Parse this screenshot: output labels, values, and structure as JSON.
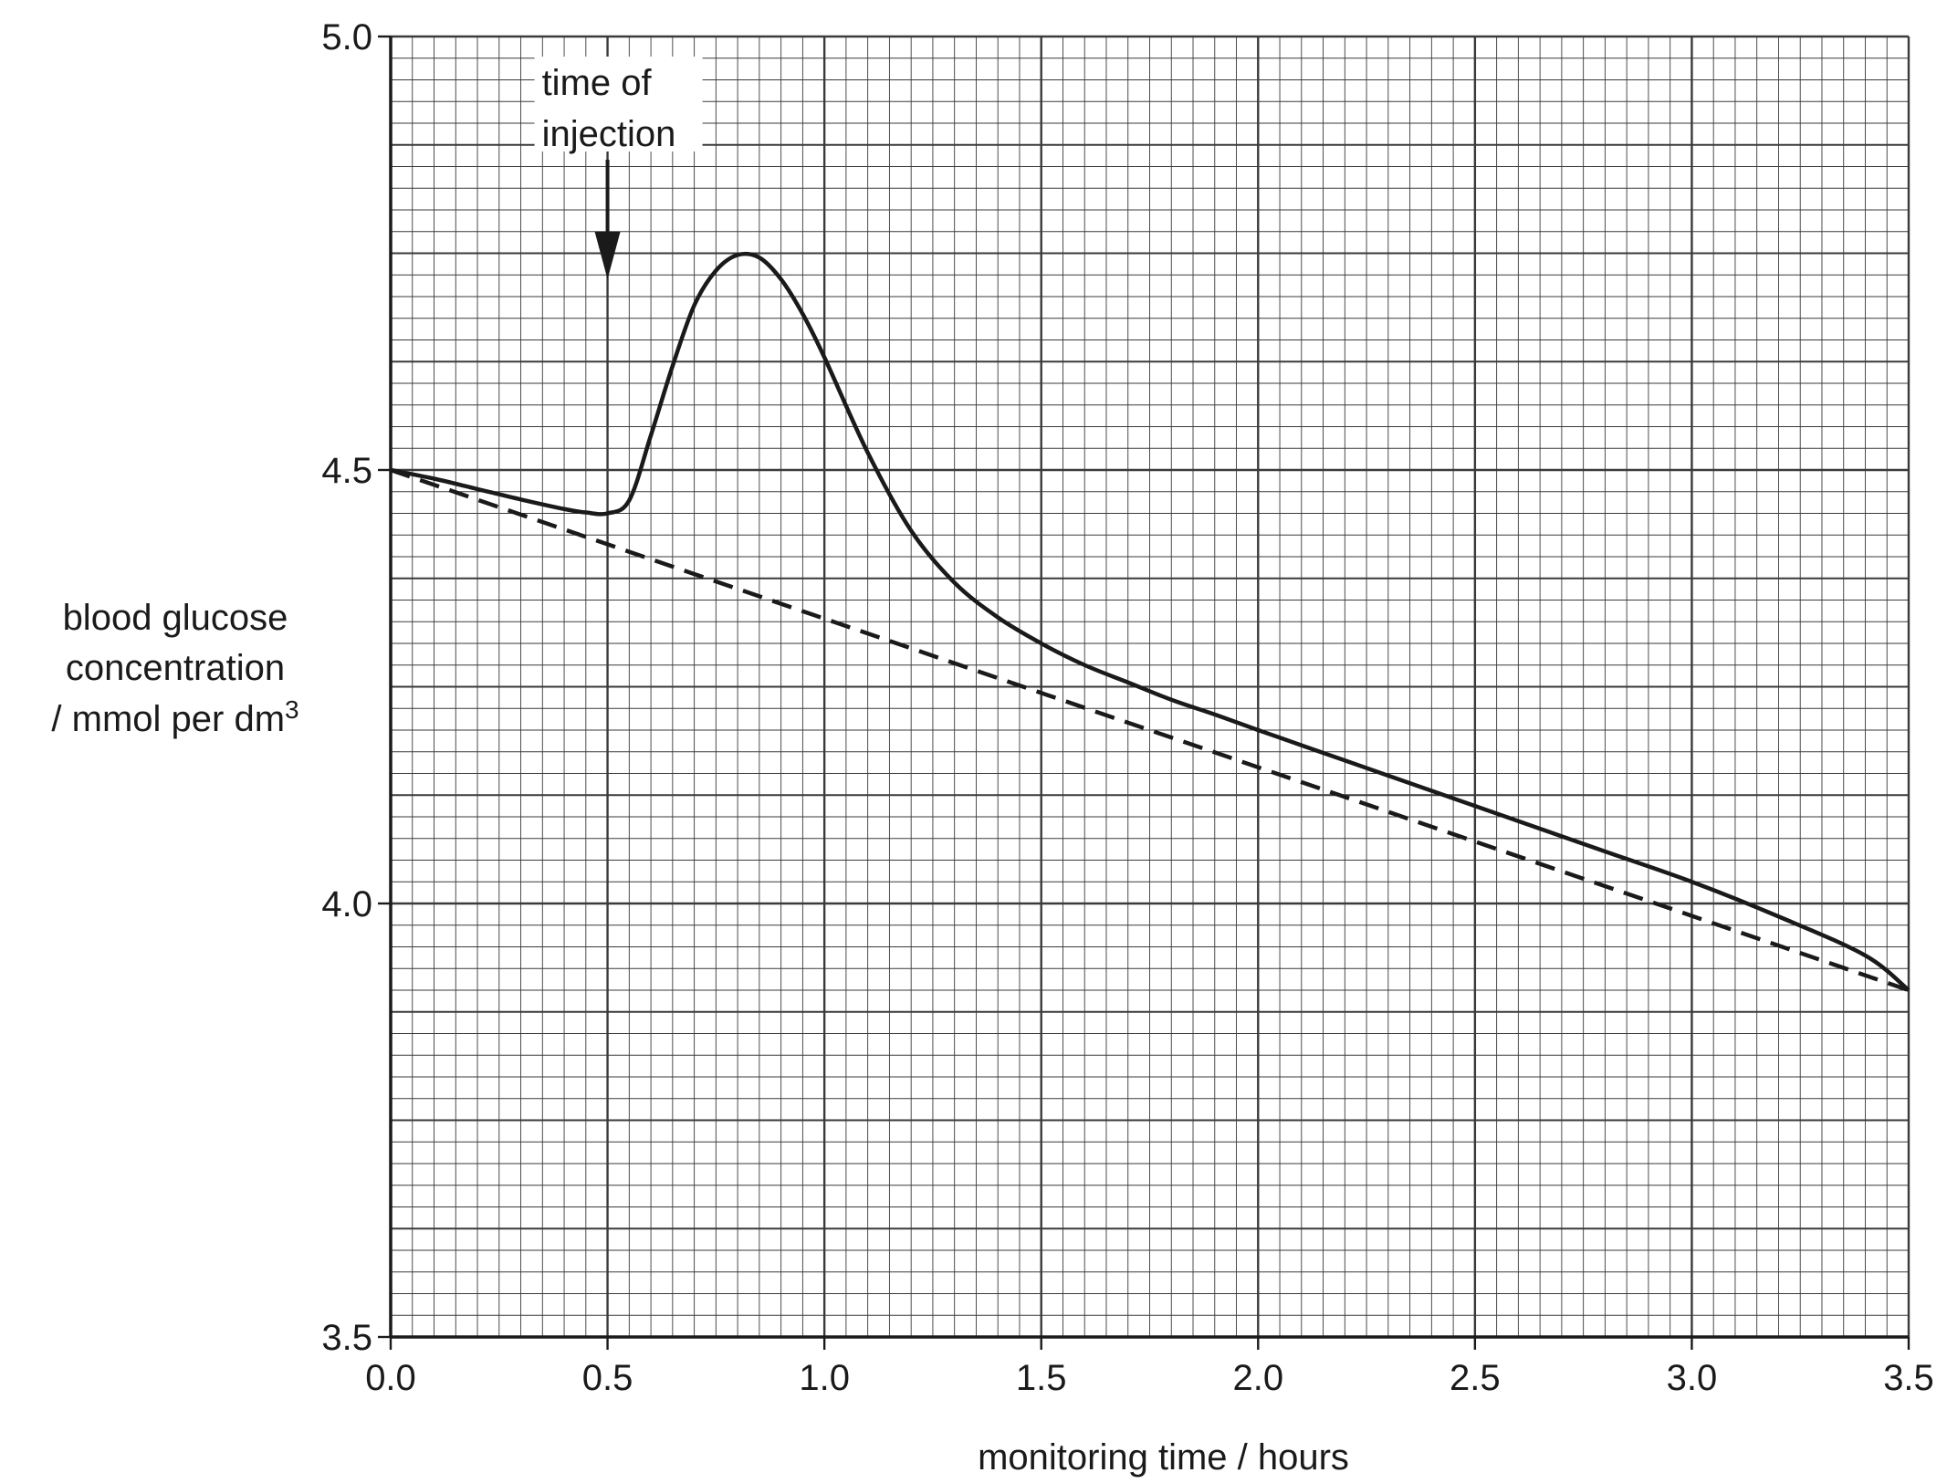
{
  "chart_data": {
    "type": "line",
    "title": "",
    "xlabel": "monitoring time / hours",
    "ylabel": {
      "line1": "blood glucose",
      "line2": "concentration",
      "line3_prefix": "/ mmol per dm",
      "line3_superscript": "3"
    },
    "xlim": [
      0.0,
      3.5
    ],
    "ylim": [
      3.5,
      5.0
    ],
    "x_ticks": [
      "0.0",
      "0.5",
      "1.0",
      "1.5",
      "2.0",
      "2.5",
      "3.0",
      "3.5"
    ],
    "y_ticks": [
      "3.5",
      "4.0",
      "4.5",
      "5.0"
    ],
    "grid": true,
    "grid_minor_x_step": 0.05,
    "grid_minor_y_step": 0.025,
    "grid_medium_y_step": 0.125,
    "series": [
      {
        "style": "solid",
        "color": "#1a1a1a",
        "x": [
          0.0,
          0.1,
          0.2,
          0.3,
          0.4,
          0.45,
          0.5,
          0.55,
          0.6,
          0.65,
          0.7,
          0.75,
          0.8,
          0.85,
          0.9,
          0.95,
          1.0,
          1.1,
          1.2,
          1.3,
          1.4,
          1.5,
          1.6,
          1.7,
          1.8,
          1.9,
          2.0,
          2.2,
          2.4,
          2.6,
          2.8,
          3.0,
          3.2,
          3.4,
          3.5
        ],
        "y": [
          4.5,
          4.49,
          4.478,
          4.466,
          4.455,
          4.451,
          4.45,
          4.465,
          4.54,
          4.62,
          4.69,
          4.73,
          4.748,
          4.745,
          4.72,
          4.68,
          4.63,
          4.52,
          4.43,
          4.37,
          4.33,
          4.3,
          4.275,
          4.255,
          4.235,
          4.218,
          4.2,
          4.165,
          4.13,
          4.095,
          4.06,
          4.025,
          3.985,
          3.94,
          3.9
        ]
      },
      {
        "style": "dashed",
        "color": "#1a1a1a",
        "x": [
          0.0,
          3.5
        ],
        "y": [
          4.5,
          3.9
        ]
      }
    ],
    "annotations": [
      {
        "text_line1": "time of",
        "text_line2": "injection",
        "x": 0.5,
        "arrow_tip_y": 4.72
      }
    ]
  }
}
